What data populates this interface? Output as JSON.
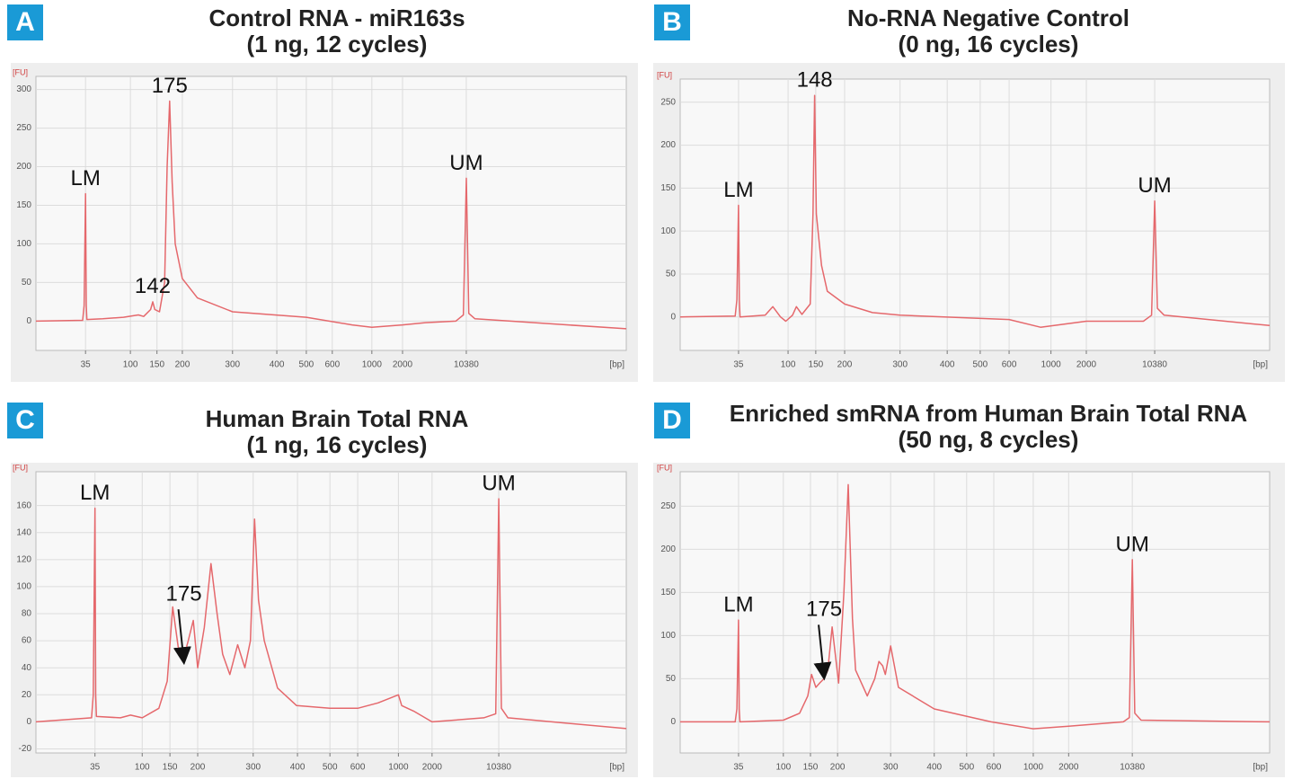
{
  "chart_data": [
    {
      "type": "line",
      "panel": "A",
      "title": "Control RNA - miR163s",
      "subtitle": "(1 ng, 12 cycles)",
      "ylabel": "[FU]",
      "xlabel": "[bp]",
      "color": "#e5686c",
      "grid": true,
      "xlim": [
        0,
        31000
      ],
      "xticks": [
        35,
        100,
        150,
        200,
        300,
        400,
        500,
        600,
        1000,
        2000,
        10380
      ],
      "ylim": [
        -38,
        317
      ],
      "yticks": [
        0,
        50,
        100,
        150,
        200,
        250,
        300
      ],
      "x": [
        0,
        33,
        34,
        35,
        36,
        37,
        60,
        90,
        115,
        125,
        138,
        142,
        146,
        155,
        165,
        170,
        175,
        180,
        186,
        200,
        230,
        300,
        500,
        800,
        1000,
        2000,
        5000,
        9000,
        10000,
        10380,
        10700,
        11500,
        31000
      ],
      "values": [
        0,
        1,
        20,
        165,
        20,
        2,
        3,
        5,
        8,
        6,
        15,
        25,
        15,
        12,
        50,
        200,
        285,
        180,
        100,
        55,
        30,
        12,
        5,
        -5,
        -8,
        -5,
        -2,
        0,
        8,
        185,
        10,
        3,
        -10
      ],
      "annotations": [
        {
          "text": "LM",
          "x": 35,
          "y": 165
        },
        {
          "text": "142",
          "x": 142,
          "y": 25
        },
        {
          "text": "175",
          "x": 175,
          "y": 285
        },
        {
          "text": "UM",
          "x": 10380,
          "y": 185
        }
      ]
    },
    {
      "type": "line",
      "panel": "B",
      "title": "No-RNA  Negative Control",
      "subtitle": "(0 ng, 16 cycles)",
      "ylabel": "[FU]",
      "xlabel": "[bp]",
      "color": "#e5686c",
      "grid": true,
      "xlim": [
        0,
        24000
      ],
      "xticks": [
        35,
        100,
        150,
        200,
        300,
        400,
        500,
        600,
        1000,
        2000,
        10380
      ],
      "ylim": [
        -39,
        277
      ],
      "yticks": [
        0,
        50,
        100,
        150,
        200,
        250
      ],
      "x": [
        0,
        33,
        34,
        35,
        36,
        37,
        70,
        80,
        90,
        97,
        108,
        115,
        125,
        140,
        145,
        148,
        151,
        160,
        170,
        200,
        250,
        300,
        600,
        900,
        2000,
        9000,
        10000,
        10380,
        10700,
        11500,
        24000
      ],
      "values": [
        0,
        1,
        20,
        130,
        20,
        0,
        2,
        12,
        0,
        -5,
        2,
        12,
        3,
        15,
        120,
        258,
        120,
        60,
        30,
        15,
        5,
        2,
        -3,
        -12,
        -5,
        -5,
        2,
        135,
        10,
        2,
        -10
      ],
      "annotations": [
        {
          "text": "LM",
          "x": 35,
          "y": 130
        },
        {
          "text": "148",
          "x": 148,
          "y": 258
        },
        {
          "text": "UM",
          "x": 10380,
          "y": 135
        }
      ]
    },
    {
      "type": "line",
      "panel": "C",
      "title": "Human Brain Total RNA",
      "subtitle": "(1 ng, 16 cycles)",
      "ylabel": "[FU]",
      "xlabel": "[bp]",
      "color": "#e5686c",
      "grid": true,
      "xlim": [
        0,
        26000
      ],
      "xticks": [
        35,
        100,
        150,
        200,
        300,
        400,
        500,
        600,
        1000,
        2000,
        10380
      ],
      "ylim": [
        -23,
        185
      ],
      "yticks": [
        -20,
        0,
        20,
        40,
        60,
        80,
        100,
        120,
        140,
        160
      ],
      "x": [
        0,
        33,
        34,
        35,
        36,
        37,
        70,
        84,
        100,
        130,
        145,
        155,
        165,
        173,
        183,
        192,
        200,
        212,
        224,
        235,
        245,
        258,
        272,
        285,
        295,
        303,
        312,
        325,
        355,
        398,
        500,
        600,
        800,
        1000,
        1100,
        1450,
        2000,
        8500,
        10000,
        10380,
        10700,
        11500,
        26000
      ],
      "values": [
        0,
        3,
        20,
        158,
        20,
        4,
        3,
        5,
        3,
        10,
        30,
        85,
        55,
        45,
        60,
        75,
        40,
        70,
        117,
        80,
        50,
        35,
        57,
        40,
        60,
        150,
        90,
        60,
        25,
        12,
        10,
        10,
        14,
        20,
        12,
        8,
        0,
        3,
        6,
        165,
        10,
        3,
        -5
      ],
      "annotations": [
        {
          "text": "LM",
          "x": 35,
          "y": 158
        },
        {
          "text": "175",
          "x": 175,
          "y": 42,
          "arrow": true
        },
        {
          "text": "UM",
          "x": 10380,
          "y": 165
        }
      ]
    },
    {
      "type": "line",
      "panel": "D",
      "title": "Enriched smRNA from Human Brain Total RNA",
      "subtitle": "(50 ng,   8 cycles)",
      "ylabel": "[FU]",
      "xlabel": "[bp]",
      "color": "#e5686c",
      "grid": true,
      "xlim": [
        0,
        28000
      ],
      "xticks": [
        35,
        100,
        150,
        200,
        300,
        400,
        500,
        600,
        1000,
        2000,
        10380
      ],
      "ylim": [
        -36,
        290
      ],
      "yticks": [
        0,
        50,
        100,
        150,
        200,
        250
      ],
      "x": [
        0,
        33,
        34,
        35,
        36,
        37,
        100,
        130,
        145,
        152,
        160,
        167,
        175,
        182,
        190,
        202,
        212,
        220,
        228,
        234,
        256,
        270,
        278,
        285,
        290,
        300,
        318,
        400,
        590,
        1000,
        2000,
        9200,
        10000,
        10380,
        10700,
        11500,
        28000
      ],
      "values": [
        0,
        0,
        15,
        118,
        15,
        0,
        2,
        10,
        30,
        55,
        40,
        45,
        50,
        60,
        110,
        45,
        150,
        275,
        120,
        60,
        30,
        50,
        70,
        65,
        55,
        88,
        40,
        15,
        0,
        -8,
        -5,
        0,
        5,
        188,
        10,
        2,
        0
      ],
      "annotations": [
        {
          "text": "LM",
          "x": 35,
          "y": 118
        },
        {
          "text": "175",
          "x": 175,
          "y": 48,
          "arrow": true
        },
        {
          "text": "UM",
          "x": 10380,
          "y": 188
        }
      ]
    }
  ]
}
